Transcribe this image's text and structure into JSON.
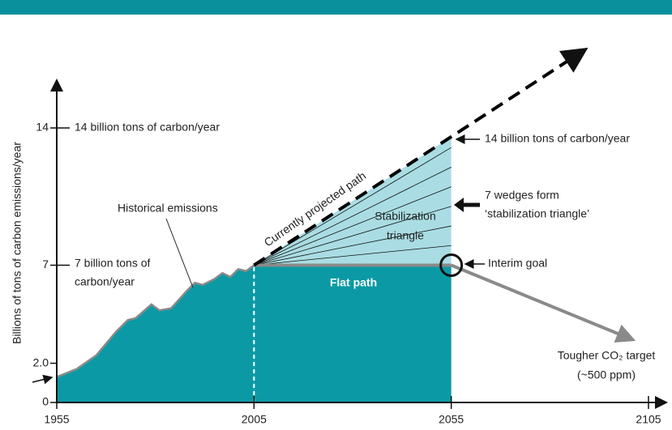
{
  "chart_data": {
    "type": "line",
    "y_label": "Billions of tons of carbon emissions/year",
    "xlim": [
      1955,
      2105
    ],
    "ylim": [
      0,
      16.6
    ],
    "xticks": [
      1955,
      2005,
      2055,
      2105
    ],
    "yticks": [
      0,
      {
        "value": 2.0,
        "label": "2.0"
      },
      7,
      14
    ],
    "series": [
      {
        "name": "Historical emissions",
        "color": "#0b9aa5",
        "x": [
          1955,
          1960,
          1965,
          1970,
          1973,
          1975,
          1979,
          1981,
          1984,
          1988,
          1990,
          1992,
          1995,
          1997,
          1999,
          2001,
          2003,
          2005
        ],
        "values": [
          1.3,
          1.7,
          2.4,
          3.6,
          4.2,
          4.3,
          5.0,
          4.7,
          4.8,
          5.7,
          6.1,
          6.0,
          6.3,
          6.6,
          6.4,
          6.8,
          6.7,
          7.0
        ]
      },
      {
        "name": "Currently projected path",
        "color": "#000000",
        "x": [
          2005,
          2089
        ],
        "values": [
          7,
          18
        ]
      },
      {
        "name": "Flat path",
        "color": "#8a8a8a",
        "x": [
          2005,
          2055
        ],
        "values": [
          7,
          7
        ]
      },
      {
        "name": "Tougher CO₂ target",
        "color": "#8a8a8a",
        "x": [
          2055,
          2101
        ],
        "values": [
          7,
          3.2
        ]
      }
    ],
    "wedge_ends": [
      8,
      9,
      10,
      11,
      12,
      13
    ],
    "wedge_x": [
      2005,
      2055
    ],
    "triangle_color": "#a9dde3",
    "annotations": {
      "left_14": "14 billion tons of carbon/year",
      "left_7": [
        "7 billion tons of",
        "carbon/year"
      ],
      "stabilization": [
        "Stabilization",
        "triangle"
      ],
      "right_14": "14 billion tons of carbon/year",
      "wedges": [
        "7 wedges form",
        "‘stabilization triangle’"
      ],
      "interim": "Interim goal",
      "target_note": "(~500 ppm)"
    }
  }
}
